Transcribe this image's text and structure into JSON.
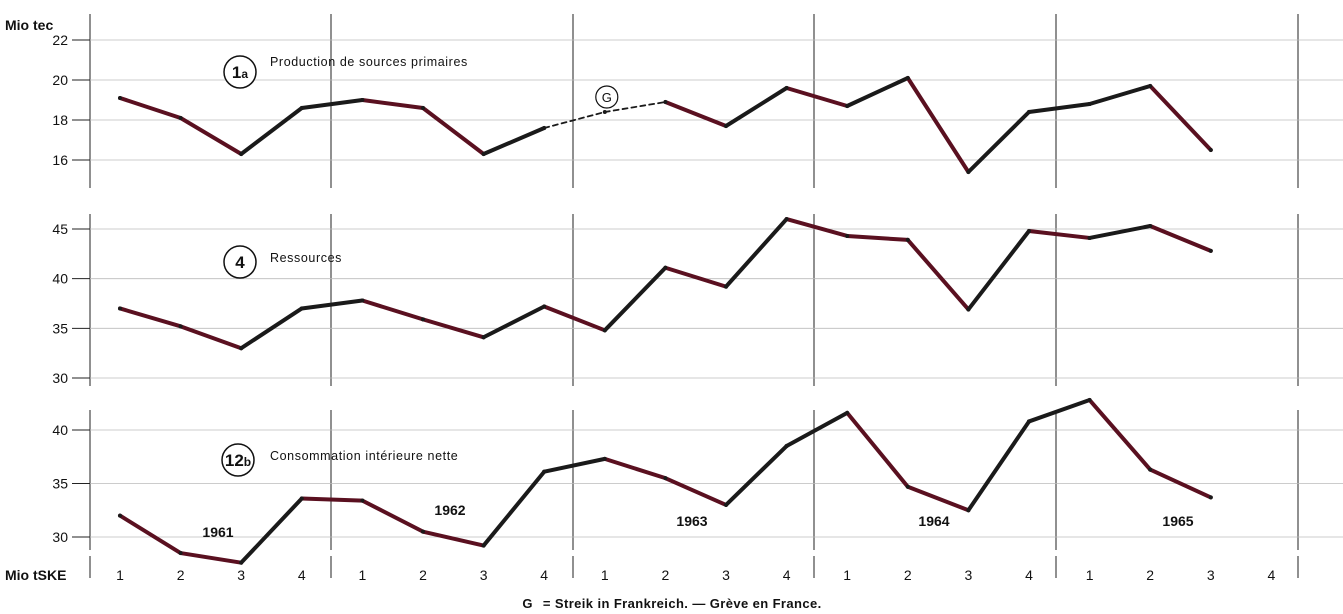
{
  "y_unit_top": "Mio tec",
  "x_unit_label": "Mio tSKE",
  "footnote_prefix": "G",
  "footnote_text": "= Streik in Frankreich. — Grève en France.",
  "colors": {
    "series_dark": "#1a1a1a",
    "series_red": "#5a1020"
  },
  "chart_data": [
    {
      "type": "line",
      "id": "1a",
      "badge_main": "1",
      "badge_sub": "a",
      "title": "Production de sources primaires",
      "ylim": [
        16,
        22
      ],
      "yticks": [
        16,
        18,
        20,
        22
      ],
      "categories": [
        "1",
        "2",
        "3",
        "4",
        "1",
        "2",
        "3",
        "4",
        "1",
        "2",
        "3",
        "4",
        "1",
        "2",
        "3",
        "4",
        "1",
        "2",
        "3",
        "4"
      ],
      "series": [
        {
          "values": [
            19.1,
            18.1,
            16.3,
            18.6,
            19.0,
            18.6,
            16.3,
            17.6,
            18.4,
            18.9,
            17.7,
            19.6,
            18.7,
            20.1,
            15.4,
            18.4,
            18.8,
            19.7,
            16.5,
            null
          ]
        }
      ],
      "annotation": {
        "label": "G",
        "from_index": 7,
        "to_index": 9,
        "style": "dashed"
      }
    },
    {
      "type": "line",
      "id": "4",
      "badge_main": "4",
      "badge_sub": "",
      "title": "Ressources",
      "ylim": [
        30,
        47
      ],
      "yticks": [
        30,
        35,
        40,
        45
      ],
      "categories": [
        "1",
        "2",
        "3",
        "4",
        "1",
        "2",
        "3",
        "4",
        "1",
        "2",
        "3",
        "4",
        "1",
        "2",
        "3",
        "4",
        "1",
        "2",
        "3",
        "4"
      ],
      "series": [
        {
          "values": [
            37.0,
            35.2,
            33.0,
            37.0,
            37.8,
            35.9,
            34.1,
            37.2,
            34.8,
            41.1,
            39.2,
            46.0,
            44.3,
            43.9,
            36.9,
            44.8,
            44.1,
            45.3,
            42.8,
            null
          ]
        }
      ]
    },
    {
      "type": "line",
      "id": "12b",
      "badge_main": "12",
      "badge_sub": "b",
      "title": "Consommation intérieure nette",
      "ylim": [
        29,
        43
      ],
      "yticks": [
        30,
        35,
        40
      ],
      "categories": [
        "1",
        "2",
        "3",
        "4",
        "1",
        "2",
        "3",
        "4",
        "1",
        "2",
        "3",
        "4",
        "1",
        "2",
        "3",
        "4",
        "1",
        "2",
        "3",
        "4"
      ],
      "years": [
        "1961",
        "1962",
        "1963",
        "1964",
        "1965"
      ],
      "series": [
        {
          "values": [
            32.0,
            28.5,
            27.6,
            33.6,
            33.4,
            30.5,
            29.2,
            36.1,
            37.3,
            35.5,
            33.0,
            38.5,
            41.6,
            34.7,
            32.5,
            40.8,
            42.8,
            36.3,
            33.7,
            null
          ]
        }
      ]
    }
  ]
}
